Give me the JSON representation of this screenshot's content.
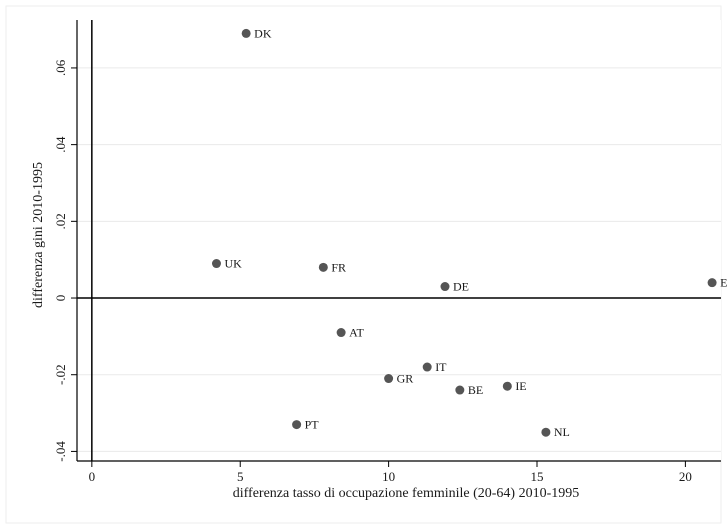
{
  "chart_data": {
    "type": "scatter",
    "xlabel": "differenza tasso di occupazione femminile (20-64)  2010-1995",
    "ylabel": "differenza gini 2010-1995",
    "xlim": [
      -0.5,
      21.2
    ],
    "ylim": [
      -0.0425,
      0.0725
    ],
    "xticks": [
      {
        "value": 0,
        "label": "0"
      },
      {
        "value": 5,
        "label": "5"
      },
      {
        "value": 10,
        "label": "10"
      },
      {
        "value": 15,
        "label": "15"
      },
      {
        "value": 20,
        "label": "20"
      }
    ],
    "yticks": [
      {
        "value": -0.04,
        "label": "-.04"
      },
      {
        "value": -0.02,
        "label": "-.02"
      },
      {
        "value": 0,
        "label": "0"
      },
      {
        "value": 0.02,
        "label": ".02"
      },
      {
        "value": 0.04,
        "label": ".04"
      },
      {
        "value": 0.06,
        "label": ".06"
      }
    ],
    "grid": true,
    "reference_lines": {
      "x": 0,
      "y": 0
    },
    "marker_color": "#555555",
    "points": [
      {
        "label": "DK",
        "x": 5.2,
        "y": 0.069
      },
      {
        "label": "UK",
        "x": 4.2,
        "y": 0.009
      },
      {
        "label": "FR",
        "x": 7.8,
        "y": 0.008
      },
      {
        "label": "DE",
        "x": 11.9,
        "y": 0.003
      },
      {
        "label": "ES",
        "x": 20.9,
        "y": 0.004
      },
      {
        "label": "AT",
        "x": 8.4,
        "y": -0.009
      },
      {
        "label": "IT",
        "x": 11.3,
        "y": -0.018
      },
      {
        "label": "GR",
        "x": 10.0,
        "y": -0.021
      },
      {
        "label": "BE",
        "x": 12.4,
        "y": -0.024
      },
      {
        "label": "IE",
        "x": 14.0,
        "y": -0.023
      },
      {
        "label": "PT",
        "x": 6.9,
        "y": -0.033
      },
      {
        "label": "NL",
        "x": 15.3,
        "y": -0.035
      }
    ]
  }
}
